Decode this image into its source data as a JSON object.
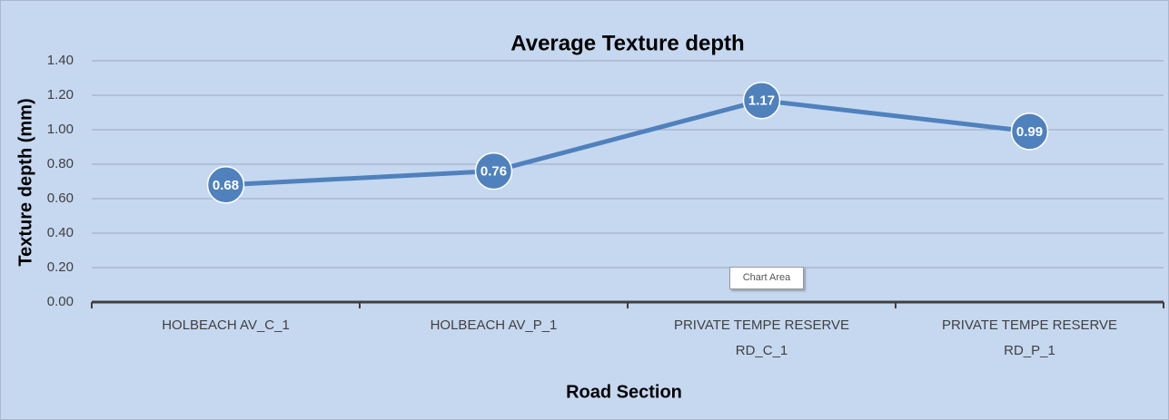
{
  "chart_data": {
    "type": "line",
    "title": "Average Texture depth",
    "x_label": "Road Section",
    "y_label": "Texture depth (mm)",
    "categories": [
      "HOLBEACH AV_C_1",
      "HOLBEACH AV_P_1",
      "PRIVATE TEMPE RESERVE RD_C_1",
      "PRIVATE TEMPE RESERVE RD_P_1"
    ],
    "series": [
      {
        "name": "Average Texture depth",
        "color": "#4f81bd",
        "values": [
          0.68,
          0.76,
          1.17,
          0.99
        ]
      }
    ],
    "ylim": [
      0,
      1.4
    ],
    "yticks": [
      {
        "value": 0,
        "label": "0.00"
      },
      {
        "value": 0.2,
        "label": "0.20"
      },
      {
        "value": 0.4,
        "label": "0.40"
      },
      {
        "value": 0.6,
        "label": "0.60"
      },
      {
        "value": 0.8,
        "label": "0.80"
      },
      {
        "value": 1,
        "label": "1.00"
      },
      {
        "value": 1.2,
        "label": "1.20"
      },
      {
        "value": 1.4,
        "label": "1.40"
      }
    ],
    "grid": true,
    "tooltip": "Chart Area"
  }
}
